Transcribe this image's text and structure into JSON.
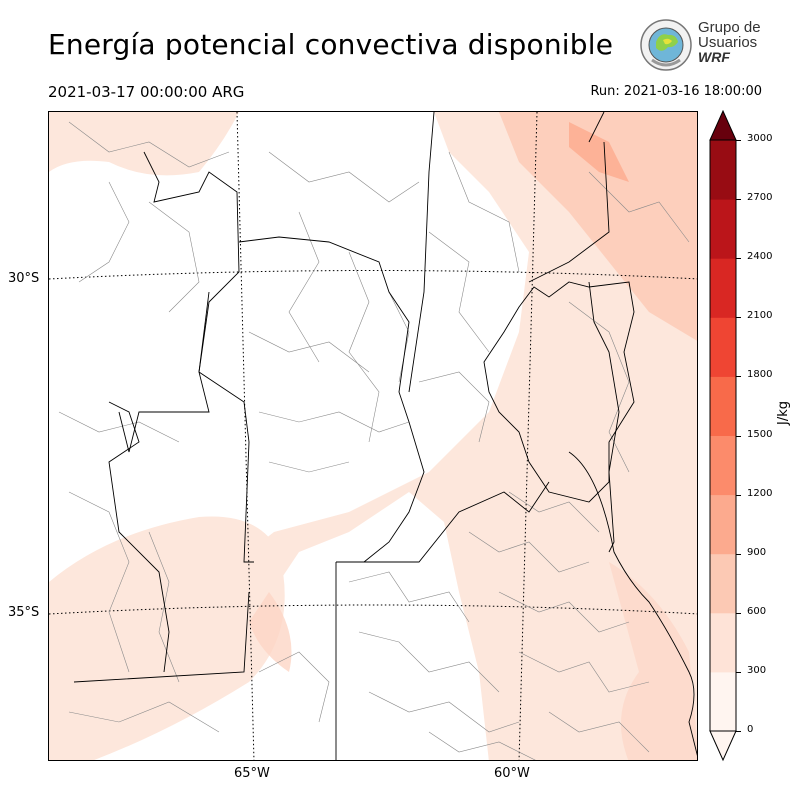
{
  "header": {
    "title": "Energía potencial convectiva disponible",
    "valid_time": "2021-03-17 00:00:00 ARG",
    "run_time": "Run: 2021-03-16 18:00:00"
  },
  "logo": {
    "line1": "Grupo de",
    "line2": "Usuarios",
    "line3": "WRF"
  },
  "map": {
    "lat_labels": [
      "30°S",
      "35°S"
    ],
    "lon_labels": [
      "65°W",
      "60°W"
    ],
    "land_fill": "#ffffff",
    "boundary_color": "#000000",
    "subdivision_color": "#777777",
    "graticule_style": "dotted"
  },
  "colorbar": {
    "unit": "J/kg",
    "levels": [
      "0",
      "300",
      "600",
      "900",
      "1200",
      "1500",
      "1800",
      "2100",
      "2400",
      "2700",
      "3000"
    ],
    "colors": [
      "#fff5f0",
      "#fee3d7",
      "#fcc9b4",
      "#fcaa8e",
      "#fc8b6b",
      "#f86a4a",
      "#ef4533",
      "#d92723",
      "#bb151a",
      "#980c13",
      "#67000d"
    ],
    "extend": "max"
  }
}
